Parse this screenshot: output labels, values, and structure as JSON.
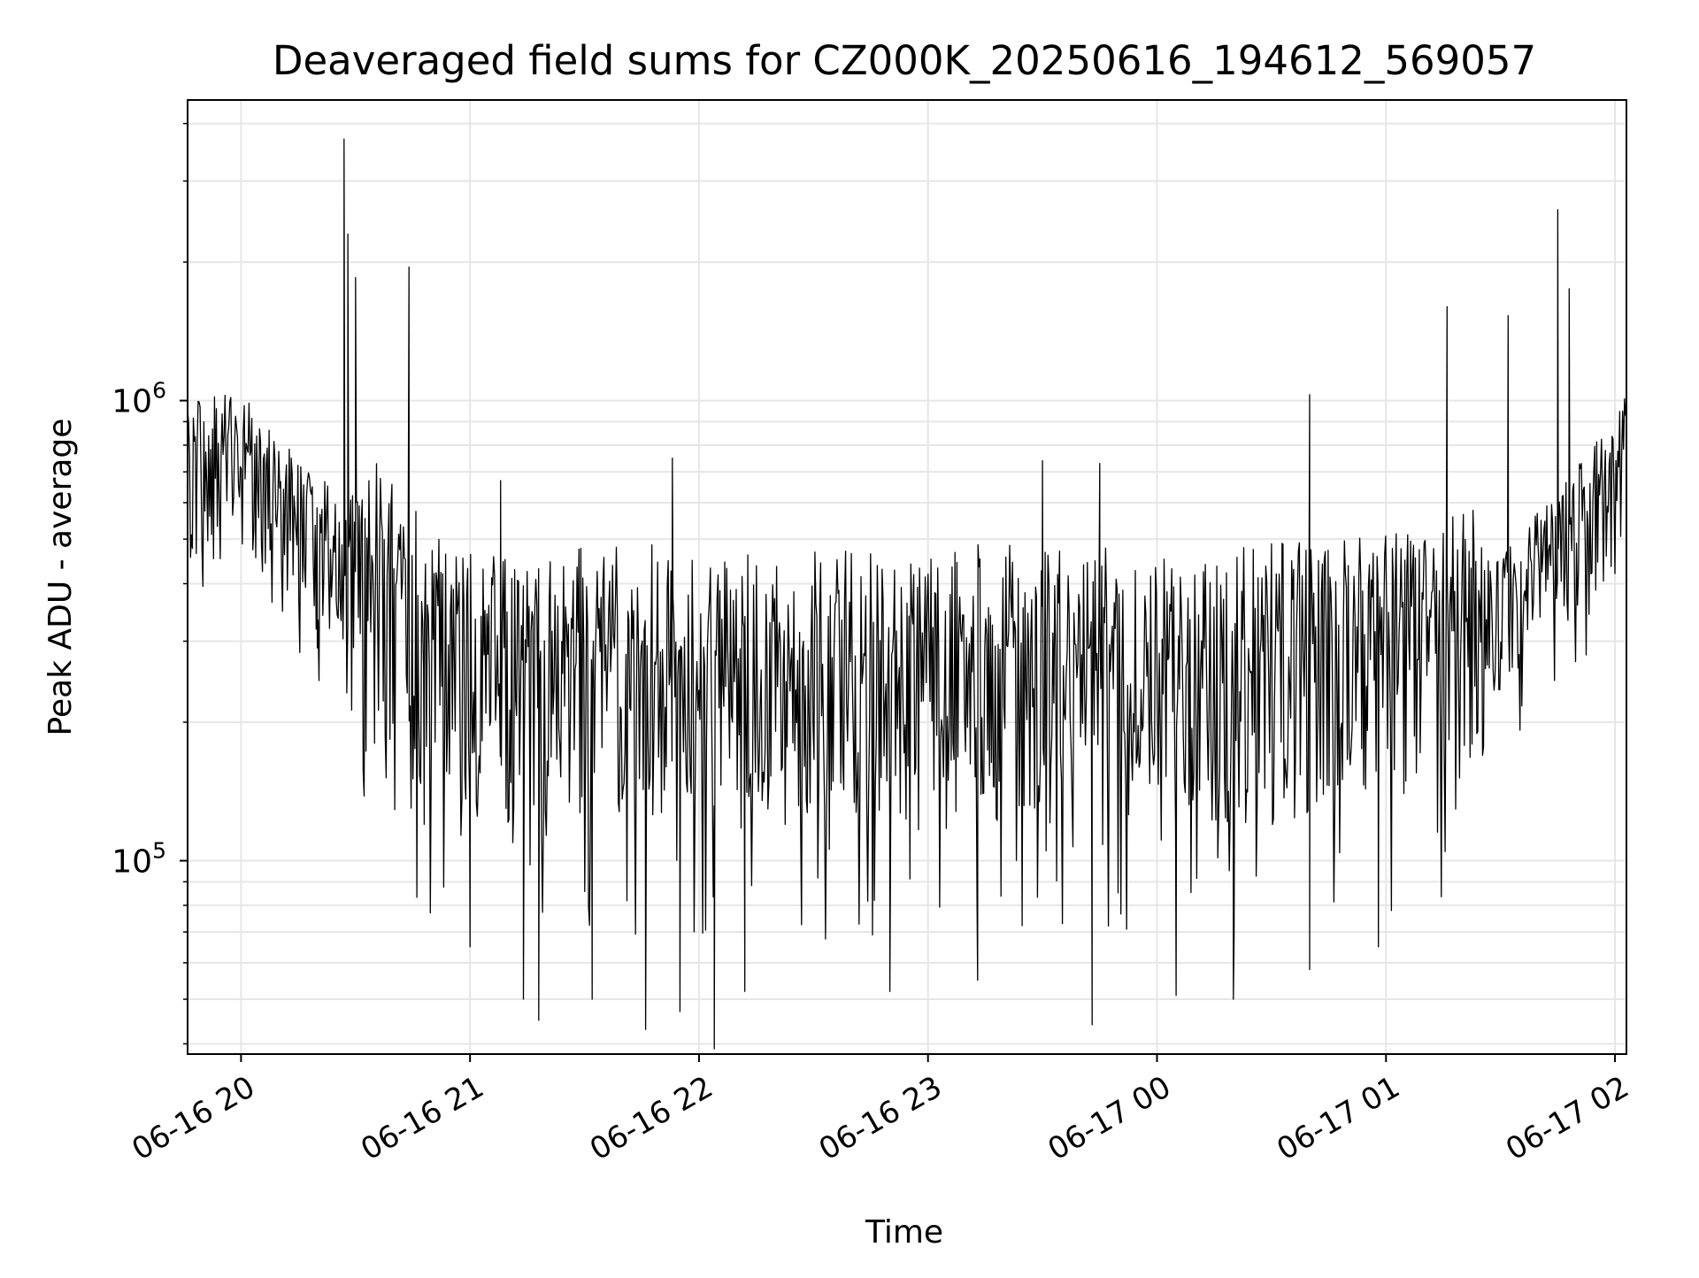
{
  "chart_data": {
    "type": "line",
    "title": "Deaveraged field sums for CZ000K_20250616_194612_569057",
    "xlabel": "Time",
    "ylabel": "Peak ADU - average",
    "yscale": "log",
    "xlim": [
      "2025-06-16 19:46",
      "2025-06-17 02:03"
    ],
    "ylim": [
      38000,
      4500000
    ],
    "grid": true,
    "line_color": "#000000",
    "grid_color": "#e6e6e6",
    "xticks": [
      {
        "value": "2025-06-16 20:00",
        "label": "06-16 20"
      },
      {
        "value": "2025-06-16 21:00",
        "label": "06-16 21"
      },
      {
        "value": "2025-06-16 22:00",
        "label": "06-16 22"
      },
      {
        "value": "2025-06-16 23:00",
        "label": "06-16 23"
      },
      {
        "value": "2025-06-17 00:00",
        "label": "06-17 00"
      },
      {
        "value": "2025-06-17 01:00",
        "label": "06-17 01"
      },
      {
        "value": "2025-06-17 02:00",
        "label": "06-17 02"
      }
    ],
    "yticks_major": [
      {
        "value": 100000,
        "base": "10",
        "exp": "5"
      },
      {
        "value": 1000000,
        "base": "10",
        "exp": "6"
      }
    ],
    "series": [
      {
        "x": [
          "2025-06-16 19:46",
          "2025-06-16 19:50",
          "2025-06-16 19:55",
          "2025-06-16 20:00",
          "2025-06-16 20:05",
          "2025-06-16 20:10",
          "2025-06-16 20:15",
          "2025-06-16 20:20",
          "2025-06-16 20:25",
          "2025-06-16 20:30",
          "2025-06-16 20:35",
          "2025-06-16 20:40",
          "2025-06-16 20:45",
          "2025-06-16 20:50",
          "2025-06-16 20:55",
          "2025-06-16 21:00",
          "2025-06-16 21:10",
          "2025-06-16 21:20",
          "2025-06-16 21:30",
          "2025-06-16 21:40",
          "2025-06-16 21:50",
          "2025-06-16 22:00",
          "2025-06-16 22:15",
          "2025-06-16 22:30",
          "2025-06-16 22:45",
          "2025-06-16 23:00",
          "2025-06-16 23:15",
          "2025-06-16 23:30",
          "2025-06-16 23:45",
          "2025-06-17 00:00",
          "2025-06-17 00:15",
          "2025-06-17 00:30",
          "2025-06-17 00:45",
          "2025-06-17 01:00",
          "2025-06-17 01:10",
          "2025-06-17 01:20",
          "2025-06-17 01:30",
          "2025-06-17 01:40",
          "2025-06-17 01:50",
          "2025-06-17 02:00",
          "2025-06-17 02:03"
        ],
        "y": [
          700000,
          740000,
          760000,
          740000,
          700000,
          630000,
          560000,
          510000,
          470000,
          450000,
          430000,
          380000,
          330000,
          300000,
          280000,
          270000,
          270000,
          260000,
          270000,
          270000,
          275000,
          260000,
          260000,
          265000,
          265000,
          275000,
          275000,
          270000,
          270000,
          265000,
          265000,
          275000,
          280000,
          290000,
          300000,
          320000,
          360000,
          430000,
          530000,
          680000,
          800000
        ]
      }
    ],
    "spikes": [
      {
        "x": "2025-06-16 20:27",
        "y": 3700000
      },
      {
        "x": "2025-06-16 20:28",
        "y": 2300000
      },
      {
        "x": "2025-06-16 20:30",
        "y": 1850000
      },
      {
        "x": "2025-06-16 20:44",
        "y": 1950000
      },
      {
        "x": "2025-06-16 21:08",
        "y": 670000
      },
      {
        "x": "2025-06-16 21:53",
        "y": 750000
      },
      {
        "x": "2025-06-16 23:30",
        "y": 740000
      },
      {
        "x": "2025-06-16 23:45",
        "y": 730000
      },
      {
        "x": "2025-06-17 00:40",
        "y": 1030000
      },
      {
        "x": "2025-06-17 01:16",
        "y": 1600000
      },
      {
        "x": "2025-06-17 01:32",
        "y": 1530000
      },
      {
        "x": "2025-06-17 01:45",
        "y": 2600000
      },
      {
        "x": "2025-06-17 01:48",
        "y": 1750000
      }
    ],
    "dips": [
      {
        "x": "2025-06-16 20:20",
        "y": 290000
      },
      {
        "x": "2025-06-16 20:35",
        "y": 180000
      },
      {
        "x": "2025-06-16 20:48",
        "y": 120000
      },
      {
        "x": "2025-06-16 21:00",
        "y": 65000
      },
      {
        "x": "2025-06-16 21:14",
        "y": 50000
      },
      {
        "x": "2025-06-16 21:18",
        "y": 45000
      },
      {
        "x": "2025-06-16 21:32",
        "y": 50000
      },
      {
        "x": "2025-06-16 21:46",
        "y": 43000
      },
      {
        "x": "2025-06-16 21:55",
        "y": 47000
      },
      {
        "x": "2025-06-16 22:04",
        "y": 39000
      },
      {
        "x": "2025-06-16 22:12",
        "y": 52000
      },
      {
        "x": "2025-06-16 22:50",
        "y": 52000
      },
      {
        "x": "2025-06-16 23:13",
        "y": 55000
      },
      {
        "x": "2025-06-16 23:43",
        "y": 44000
      },
      {
        "x": "2025-06-17 00:05",
        "y": 51000
      },
      {
        "x": "2025-06-17 00:20",
        "y": 50000
      },
      {
        "x": "2025-06-17 00:40",
        "y": 58000
      },
      {
        "x": "2025-06-17 00:58",
        "y": 65000
      }
    ]
  }
}
